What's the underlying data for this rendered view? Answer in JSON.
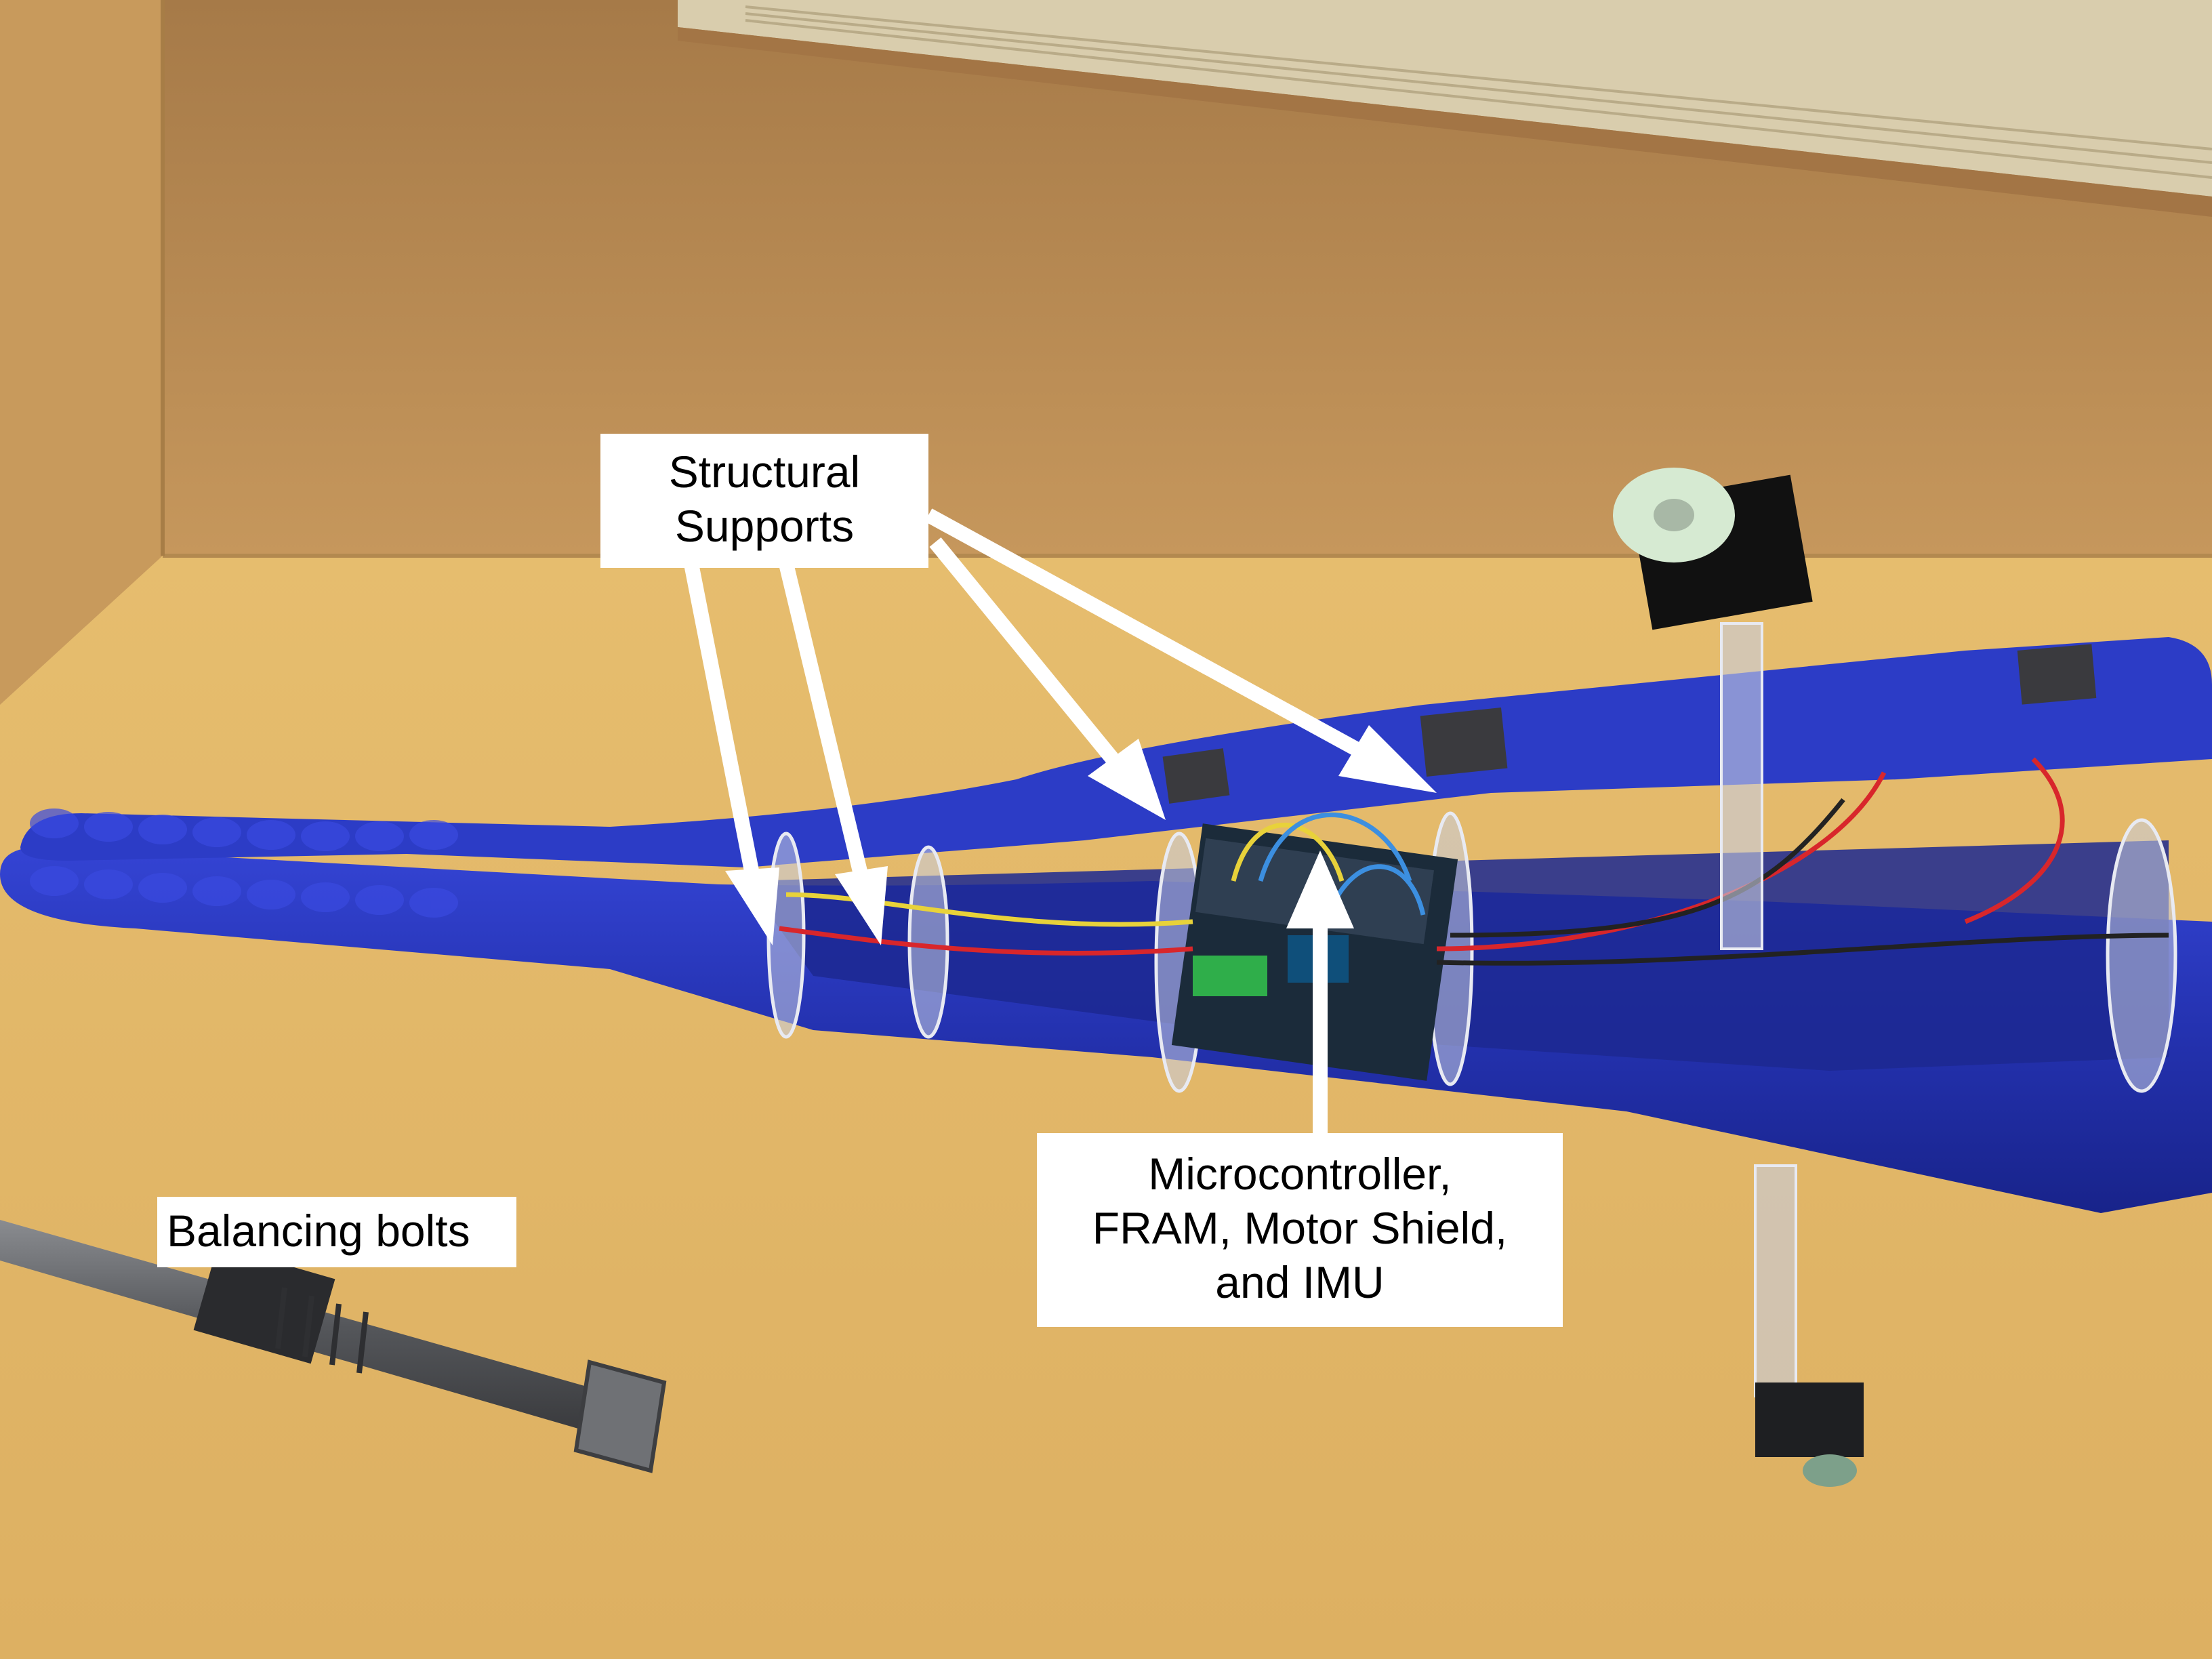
{
  "photo": {
    "subject": "robot-prototype-photo",
    "colors": {
      "wall": "#b98a55",
      "floor": "#e2b96b",
      "shelf_edge": "#d6c9a8",
      "robot_body": "#2b3bbf",
      "robot_shadow": "#14207a",
      "acrylic": "#c8cde0",
      "wire_red": "#d8262b",
      "wire_yellow": "#e8d23a",
      "wire_blue": "#3c8fe0",
      "bolt": "#6a6c70",
      "arrow": "#ffffff"
    }
  },
  "annotations": {
    "structural_supports": {
      "line1": "Structural",
      "line2": "Supports"
    },
    "microcontroller": {
      "line1": "Microcontroller,",
      "line2": "FRAM, Motor Shield,",
      "line3": "and IMU"
    },
    "balancing_bolts": {
      "text": "Balancing bolts"
    }
  }
}
